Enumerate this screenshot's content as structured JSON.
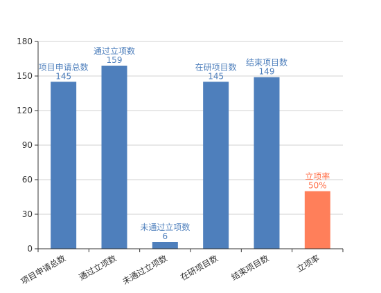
{
  "chart_data": {
    "type": "bar",
    "title": "",
    "xlabel": "",
    "ylabel": "",
    "categories": [
      "项目申请总数",
      "通过立项数",
      "未通过立项数",
      "在研项目数",
      "结束项目数",
      "立项率"
    ],
    "values": [
      145,
      159,
      6,
      145,
      149,
      50
    ],
    "data_labels": [
      {
        "name": "项目申请总数",
        "value": "145"
      },
      {
        "name": "通过立项数",
        "value": "159"
      },
      {
        "name": "未通过立项数",
        "value": "6"
      },
      {
        "name": "在研项目数",
        "value": "145"
      },
      {
        "name": "结束项目数",
        "value": "149"
      },
      {
        "name": "立项率",
        "value": "50%"
      }
    ],
    "ylim": [
      0,
      180
    ],
    "yticks": [
      0,
      30,
      60,
      90,
      120,
      150,
      180
    ],
    "grid": true,
    "legend": "none",
    "colors": {
      "default_bar": "#4E7FBC",
      "highlight_bar": "#FF7F5A",
      "default_label": "#4E7FBC",
      "highlight_label": "#FF6E47",
      "grid": "#D0D0D0",
      "axis": "#333333",
      "tick_text": "#333333"
    },
    "highlight_index": 5
  }
}
